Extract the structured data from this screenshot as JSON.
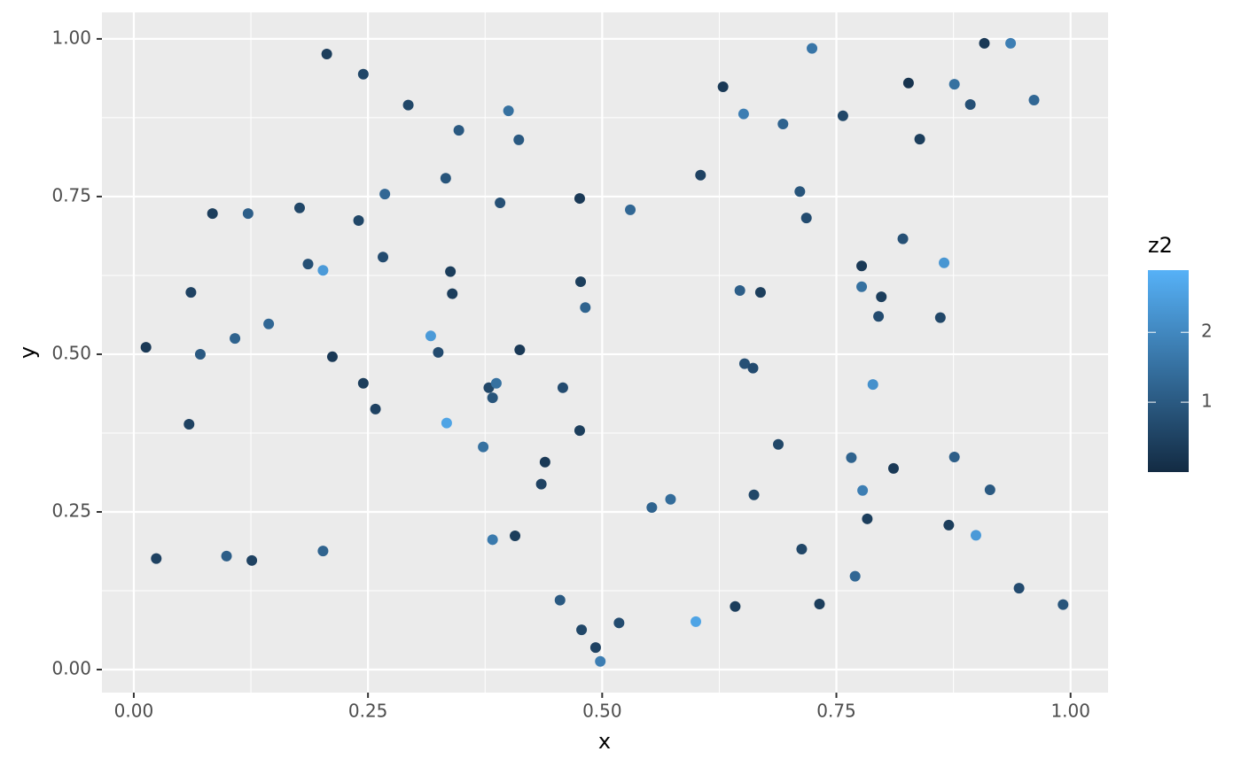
{
  "chart_data": {
    "type": "scatter",
    "x_label": "x",
    "y_label": "y",
    "xlim": [
      -0.034,
      1.04
    ],
    "ylim": [
      -0.0365,
      1.042
    ],
    "xticks": [
      {
        "value": 0,
        "label": "0.00"
      },
      0.25,
      {
        "value": 0.5,
        "label": "0.50"
      },
      0.75,
      {
        "value": 1,
        "label": "1.00"
      }
    ],
    "yticks": [
      {
        "value": 0,
        "label": "0.00"
      },
      0.25,
      {
        "value": 0.5,
        "label": "0.50"
      },
      0.75,
      {
        "value": 1,
        "label": "1.00"
      }
    ],
    "grid": true,
    "color_scale": {
      "title": "z2",
      "low": "#132B43",
      "high": "#56B1F7",
      "zlim": [
        0,
        2.89
      ],
      "ticks": [
        1,
        2
      ]
    },
    "x": [
      0.013,
      0.024,
      0.059,
      0.061,
      0.071,
      0.084,
      0.099,
      0.108,
      0.122,
      0.126,
      0.144,
      0.177,
      0.186,
      0.202,
      0.202,
      0.206,
      0.212,
      0.24,
      0.245,
      0.245,
      0.258,
      0.266,
      0.268,
      0.293,
      0.317,
      0.325,
      0.333,
      0.334,
      0.338,
      0.34,
      0.347,
      0.373,
      0.379,
      0.383,
      0.383,
      0.387,
      0.391,
      0.4,
      0.407,
      0.411,
      0.412,
      0.435,
      0.439,
      0.455,
      0.458,
      0.476,
      0.476,
      0.477,
      0.478,
      0.482,
      0.493,
      0.498,
      0.518,
      0.53,
      0.553,
      0.573,
      0.6,
      0.605,
      0.629,
      0.642,
      0.647,
      0.651,
      0.652,
      0.661,
      0.662,
      0.669,
      0.688,
      0.693,
      0.711,
      0.713,
      0.718,
      0.724,
      0.732,
      0.757,
      0.766,
      0.77,
      0.777,
      0.777,
      0.778,
      0.783,
      0.789,
      0.795,
      0.798,
      0.811,
      0.821,
      0.827,
      0.839,
      0.861,
      0.865,
      0.87,
      0.876,
      0.876,
      0.893,
      0.899,
      0.908,
      0.914,
      0.936,
      0.945,
      0.961,
      0.992
    ],
    "y": [
      0.511,
      0.176,
      0.389,
      0.598,
      0.5,
      0.723,
      0.18,
      0.525,
      0.723,
      0.173,
      0.548,
      0.732,
      0.643,
      0.633,
      0.188,
      0.976,
      0.496,
      0.712,
      0.944,
      0.454,
      0.413,
      0.654,
      0.754,
      0.895,
      0.529,
      0.503,
      0.779,
      0.391,
      0.631,
      0.596,
      0.855,
      0.353,
      0.447,
      0.431,
      0.206,
      0.454,
      0.74,
      0.886,
      0.212,
      0.84,
      0.507,
      0.294,
      0.329,
      0.11,
      0.447,
      0.747,
      0.379,
      0.615,
      0.063,
      0.574,
      0.035,
      0.013,
      0.074,
      0.729,
      0.257,
      0.27,
      0.076,
      0.784,
      0.924,
      0.1,
      0.601,
      0.881,
      0.485,
      0.478,
      0.277,
      0.598,
      0.357,
      0.865,
      0.758,
      0.191,
      0.716,
      0.985,
      0.104,
      0.878,
      0.336,
      0.148,
      0.64,
      0.607,
      0.284,
      0.239,
      0.452,
      0.56,
      0.591,
      0.319,
      0.683,
      0.93,
      0.841,
      0.558,
      0.645,
      0.229,
      0.928,
      0.337,
      0.896,
      0.213,
      0.993,
      0.285,
      0.993,
      0.129,
      0.903,
      0.103
    ],
    "z": [
      0.3,
      0.5,
      0.5,
      0.5,
      1.0,
      0.4,
      1.1,
      1.2,
      1.1,
      0.5,
      1.3,
      0.6,
      0.8,
      2.4,
      1.2,
      0.4,
      0.3,
      0.6,
      0.6,
      0.4,
      0.5,
      0.7,
      1.3,
      0.6,
      2.4,
      0.7,
      0.9,
      2.6,
      0.4,
      0.4,
      1.0,
      1.5,
      0.6,
      0.9,
      1.7,
      1.5,
      0.8,
      1.5,
      0.4,
      1.0,
      0.3,
      0.5,
      0.3,
      1.0,
      0.7,
      0.3,
      0.4,
      0.4,
      0.6,
      1.2,
      0.5,
      1.8,
      0.7,
      1.3,
      1.2,
      1.4,
      2.6,
      0.5,
      0.3,
      0.4,
      1.1,
      1.8,
      0.8,
      0.7,
      0.6,
      0.4,
      0.6,
      1.2,
      0.9,
      0.6,
      0.7,
      1.6,
      0.4,
      0.6,
      1.2,
      1.3,
      0.3,
      1.5,
      1.8,
      0.4,
      2.2,
      0.7,
      0.4,
      0.3,
      0.8,
      0.2,
      0.4,
      0.6,
      2.3,
      0.4,
      1.5,
      1.1,
      0.8,
      2.4,
      0.3,
      1.0,
      1.8,
      0.7,
      1.3,
      0.9
    ]
  }
}
